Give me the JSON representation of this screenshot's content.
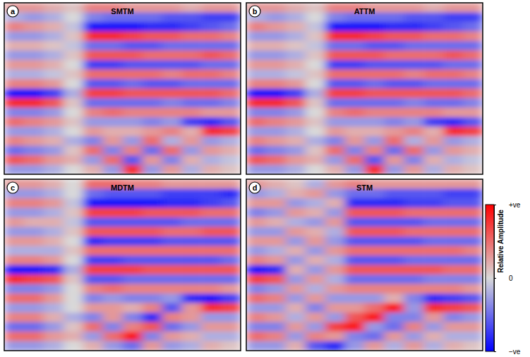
{
  "chart_data": [
    {
      "type": "heatmap",
      "label": "a",
      "title": "SMTM",
      "tick_labels": false,
      "cells": [
        [
          0.3,
          0.3,
          0.2,
          0.1,
          0.4,
          0.4,
          0.3,
          0.3,
          0.3,
          0.2,
          0.3,
          0.3
        ],
        [
          -0.2,
          -0.3,
          -0.2,
          0.0,
          -0.4,
          -0.5,
          -0.5,
          -0.5,
          -0.6,
          -0.6,
          -0.7,
          -0.7
        ],
        [
          0.4,
          0.3,
          0.2,
          -0.1,
          -0.9,
          -0.9,
          -0.9,
          -0.8,
          -0.8,
          -0.7,
          -0.6,
          -0.5
        ],
        [
          -0.3,
          -0.3,
          -0.2,
          0.1,
          0.8,
          0.8,
          0.7,
          0.6,
          0.6,
          0.5,
          0.5,
          0.4
        ],
        [
          0.2,
          0.2,
          0.1,
          -0.1,
          -0.5,
          -0.5,
          -0.6,
          -0.6,
          -0.5,
          -0.5,
          -0.5,
          -0.5
        ],
        [
          -0.3,
          -0.3,
          -0.2,
          0.1,
          0.6,
          0.6,
          0.6,
          0.5,
          0.5,
          0.5,
          0.6,
          0.5
        ],
        [
          0.3,
          0.3,
          0.2,
          0.0,
          -0.7,
          -0.7,
          -0.6,
          -0.6,
          -0.6,
          -0.6,
          -0.5,
          -0.5
        ],
        [
          -0.2,
          -0.2,
          -0.1,
          0.1,
          0.5,
          0.5,
          0.5,
          0.5,
          0.4,
          0.5,
          0.5,
          0.4
        ],
        [
          0.4,
          0.4,
          0.3,
          0.0,
          -0.6,
          -0.6,
          -0.5,
          -0.6,
          -0.6,
          -0.5,
          -0.5,
          -0.5
        ],
        [
          -0.9,
          -0.9,
          -0.7,
          -0.2,
          0.7,
          0.7,
          0.6,
          0.6,
          0.6,
          0.6,
          0.6,
          0.5
        ],
        [
          0.8,
          0.8,
          0.6,
          0.1,
          -0.5,
          -0.5,
          -0.5,
          -0.5,
          -0.4,
          -0.5,
          -0.5,
          -0.4
        ],
        [
          -0.4,
          -0.4,
          -0.3,
          0.0,
          0.4,
          0.5,
          0.4,
          0.4,
          0.4,
          0.4,
          0.3,
          0.3
        ],
        [
          0.5,
          0.4,
          0.3,
          0.1,
          -0.3,
          -0.3,
          -0.3,
          -0.4,
          -0.3,
          -0.7,
          -0.8,
          -0.6
        ],
        [
          -0.3,
          -0.3,
          -0.2,
          0.0,
          0.3,
          0.2,
          0.2,
          0.3,
          0.4,
          0.2,
          0.8,
          0.7
        ],
        [
          0.4,
          0.3,
          0.2,
          -0.2,
          -0.4,
          0.3,
          -0.3,
          0.5,
          -0.2,
          0.3,
          -0.3,
          -0.2
        ],
        [
          -0.5,
          -0.4,
          -0.3,
          0.1,
          0.5,
          -0.4,
          0.4,
          -0.5,
          0.5,
          -0.3,
          0.3,
          0.2
        ],
        [
          0.6,
          0.5,
          0.3,
          0.2,
          -0.3,
          0.5,
          -0.6,
          0.3,
          -0.4,
          0.2,
          -0.2,
          -0.1
        ],
        [
          -0.3,
          -0.3,
          -0.2,
          0.0,
          0.2,
          -0.3,
          0.8,
          -0.3,
          0.3,
          -0.2,
          0.2,
          0.1
        ]
      ]
    },
    {
      "type": "heatmap",
      "label": "b",
      "title": "ATTM",
      "tick_labels": false,
      "cells": [
        [
          0.3,
          0.3,
          0.2,
          0.1,
          0.4,
          0.4,
          0.3,
          0.3,
          0.3,
          0.2,
          0.3,
          0.3
        ],
        [
          -0.2,
          -0.3,
          -0.2,
          0.0,
          -0.4,
          -0.5,
          -0.5,
          -0.5,
          -0.6,
          -0.6,
          -0.7,
          -0.7
        ],
        [
          0.4,
          0.3,
          0.2,
          -0.1,
          -0.9,
          -0.9,
          -0.9,
          -0.8,
          -0.8,
          -0.7,
          -0.6,
          -0.5
        ],
        [
          -0.3,
          -0.3,
          -0.2,
          0.1,
          0.8,
          0.8,
          0.7,
          0.6,
          0.6,
          0.5,
          0.5,
          0.4
        ],
        [
          0.2,
          0.2,
          0.1,
          -0.1,
          -0.5,
          -0.5,
          -0.6,
          -0.6,
          -0.5,
          -0.5,
          -0.5,
          -0.5
        ],
        [
          -0.3,
          -0.3,
          -0.2,
          0.1,
          0.6,
          0.6,
          0.6,
          0.5,
          0.5,
          0.5,
          0.6,
          0.5
        ],
        [
          0.3,
          0.3,
          0.2,
          0.0,
          -0.7,
          -0.7,
          -0.6,
          -0.6,
          -0.6,
          -0.6,
          -0.5,
          -0.5
        ],
        [
          -0.2,
          -0.2,
          -0.1,
          0.1,
          0.5,
          0.5,
          0.5,
          0.5,
          0.4,
          0.5,
          0.5,
          0.4
        ],
        [
          0.4,
          0.4,
          0.3,
          0.0,
          -0.6,
          -0.6,
          -0.5,
          -0.6,
          -0.6,
          -0.5,
          -0.5,
          -0.5
        ],
        [
          -0.9,
          -0.9,
          -0.7,
          -0.2,
          0.7,
          0.7,
          0.6,
          0.6,
          0.6,
          0.6,
          0.6,
          0.5
        ],
        [
          0.8,
          0.8,
          0.6,
          0.1,
          -0.5,
          -0.5,
          -0.5,
          -0.5,
          -0.4,
          -0.5,
          -0.5,
          -0.4
        ],
        [
          -0.4,
          -0.4,
          -0.3,
          0.0,
          0.4,
          0.5,
          0.4,
          0.4,
          0.4,
          0.4,
          0.3,
          0.3
        ],
        [
          0.5,
          0.4,
          0.3,
          0.1,
          -0.3,
          -0.3,
          -0.3,
          -0.4,
          -0.3,
          -0.7,
          -0.8,
          -0.6
        ],
        [
          -0.3,
          -0.3,
          -0.2,
          0.0,
          0.3,
          0.2,
          0.2,
          0.3,
          0.4,
          0.2,
          0.8,
          0.7
        ],
        [
          0.4,
          0.3,
          0.2,
          -0.2,
          -0.4,
          0.3,
          -0.3,
          0.5,
          -0.2,
          0.3,
          -0.3,
          -0.2
        ],
        [
          -0.5,
          -0.4,
          -0.3,
          0.1,
          0.5,
          -0.4,
          0.4,
          -0.5,
          0.5,
          -0.3,
          0.3,
          0.2
        ],
        [
          0.6,
          0.5,
          0.3,
          0.2,
          -0.3,
          0.5,
          -0.6,
          0.3,
          -0.4,
          0.2,
          -0.2,
          -0.1
        ],
        [
          -0.3,
          -0.3,
          -0.2,
          0.0,
          0.2,
          -0.3,
          0.8,
          -0.3,
          0.3,
          -0.2,
          0.2,
          0.1
        ]
      ]
    },
    {
      "type": "heatmap",
      "label": "c",
      "title": "MDTM",
      "tick_labels": false,
      "cells": [
        [
          0.3,
          0.3,
          0.2,
          0.0,
          0.5,
          0.5,
          0.4,
          0.4,
          0.3,
          0.3,
          0.3,
          0.3
        ],
        [
          -0.3,
          -0.3,
          -0.2,
          0.0,
          -0.5,
          -0.6,
          -0.6,
          -0.6,
          -0.7,
          -0.7,
          -0.7,
          -0.8
        ],
        [
          0.4,
          0.4,
          0.3,
          -0.1,
          -0.9,
          -0.9,
          -0.9,
          -0.9,
          -0.8,
          -0.8,
          -0.7,
          -0.6
        ],
        [
          -0.3,
          -0.3,
          -0.2,
          0.1,
          0.7,
          0.7,
          0.7,
          0.6,
          0.6,
          0.6,
          0.5,
          0.5
        ],
        [
          0.3,
          0.2,
          0.2,
          -0.1,
          -0.6,
          -0.6,
          -0.6,
          -0.6,
          -0.6,
          -0.5,
          -0.5,
          -0.5
        ],
        [
          -0.3,
          -0.3,
          -0.2,
          0.1,
          0.6,
          0.6,
          0.6,
          0.6,
          0.5,
          0.5,
          0.6,
          0.6
        ],
        [
          0.3,
          0.3,
          0.2,
          0.0,
          -0.8,
          -0.7,
          -0.7,
          -0.7,
          -0.6,
          -0.6,
          -0.6,
          -0.6
        ],
        [
          -0.2,
          -0.2,
          -0.2,
          0.1,
          0.5,
          0.5,
          0.5,
          0.5,
          0.5,
          0.5,
          0.5,
          0.5
        ],
        [
          0.4,
          0.4,
          0.3,
          0.0,
          -0.7,
          -0.7,
          -0.6,
          -0.6,
          -0.6,
          -0.6,
          -0.6,
          -0.5
        ],
        [
          -0.9,
          -0.9,
          -0.8,
          -0.2,
          0.7,
          0.7,
          0.7,
          0.6,
          0.6,
          0.6,
          0.6,
          0.6
        ],
        [
          0.8,
          0.7,
          0.6,
          0.1,
          -0.6,
          -0.6,
          -0.5,
          -0.5,
          -0.5,
          -0.5,
          -0.5,
          -0.5
        ],
        [
          -0.4,
          -0.4,
          -0.3,
          0.0,
          0.4,
          0.5,
          0.4,
          0.4,
          0.4,
          0.4,
          0.4,
          0.3
        ],
        [
          0.5,
          0.5,
          0.3,
          0.0,
          -0.4,
          -0.3,
          -0.4,
          -0.4,
          -0.3,
          -0.8,
          -0.9,
          -0.7
        ],
        [
          -0.3,
          -0.3,
          -0.2,
          0.0,
          0.3,
          0.3,
          0.2,
          0.4,
          -0.6,
          0.3,
          0.8,
          0.7
        ],
        [
          0.4,
          0.4,
          0.2,
          -0.2,
          -0.4,
          0.3,
          -0.4,
          -0.8,
          0.4,
          0.3,
          -0.3,
          -0.3
        ],
        [
          -0.5,
          -0.5,
          -0.3,
          0.1,
          0.5,
          -0.4,
          0.4,
          0.6,
          -0.5,
          -0.3,
          0.3,
          0.3
        ],
        [
          0.5,
          0.5,
          0.3,
          0.2,
          -0.3,
          0.5,
          0.9,
          -0.4,
          0.3,
          0.2,
          -0.2,
          -0.2
        ],
        [
          -0.3,
          -0.3,
          -0.2,
          0.0,
          0.2,
          -0.3,
          -0.5,
          0.3,
          -0.3,
          -0.2,
          0.2,
          0.1
        ]
      ]
    },
    {
      "type": "heatmap",
      "label": "d",
      "title": "STM",
      "tick_labels": false,
      "cells": [
        [
          0.3,
          0.2,
          0.1,
          -0.2,
          0.3,
          0.4,
          0.3,
          0.3,
          0.3,
          0.3,
          0.3,
          0.3
        ],
        [
          -0.3,
          -0.2,
          0.2,
          0.3,
          -0.3,
          -0.5,
          -0.5,
          -0.6,
          -0.6,
          -0.6,
          -0.7,
          -0.7
        ],
        [
          0.3,
          0.3,
          -0.3,
          -0.2,
          0.2,
          -0.8,
          -0.8,
          -0.8,
          -0.7,
          -0.7,
          -0.6,
          -0.6
        ],
        [
          -0.4,
          -0.3,
          0.3,
          0.2,
          -0.3,
          0.6,
          0.6,
          0.6,
          0.5,
          0.5,
          0.5,
          0.5
        ],
        [
          0.3,
          0.2,
          -0.2,
          -0.3,
          0.3,
          -0.6,
          -0.6,
          -0.6,
          -0.6,
          -0.5,
          -0.5,
          -0.5
        ],
        [
          -0.3,
          -0.3,
          0.3,
          0.2,
          -0.2,
          0.6,
          0.6,
          0.6,
          0.5,
          0.5,
          0.5,
          0.5
        ],
        [
          0.3,
          0.3,
          -0.3,
          0.3,
          -0.3,
          -0.6,
          -0.6,
          -0.6,
          -0.6,
          -0.5,
          -0.5,
          -0.5
        ],
        [
          -0.3,
          -0.2,
          0.2,
          -0.3,
          0.3,
          0.5,
          0.5,
          0.5,
          0.5,
          0.5,
          0.5,
          0.4
        ],
        [
          0.4,
          0.3,
          -0.3,
          0.2,
          -0.2,
          -0.6,
          -0.6,
          -0.6,
          -0.5,
          -0.5,
          -0.5,
          -0.5
        ],
        [
          -0.9,
          -0.8,
          0.2,
          -0.3,
          0.3,
          0.6,
          0.6,
          0.6,
          0.6,
          0.6,
          0.5,
          0.5
        ],
        [
          0.7,
          0.6,
          -0.3,
          0.3,
          -0.2,
          -0.5,
          -0.5,
          -0.5,
          -0.5,
          -0.4,
          -0.4,
          -0.4
        ],
        [
          -0.4,
          -0.3,
          0.3,
          -0.2,
          0.3,
          0.4,
          0.4,
          0.4,
          0.4,
          0.4,
          0.4,
          0.3
        ],
        [
          0.5,
          0.4,
          -0.3,
          0.3,
          -0.3,
          -0.3,
          -0.3,
          0.2,
          -0.4,
          -0.8,
          -0.7,
          -0.6
        ],
        [
          -0.3,
          -0.3,
          0.2,
          -0.4,
          0.3,
          0.3,
          0.5,
          0.9,
          -0.3,
          0.8,
          0.7,
          0.6
        ],
        [
          0.4,
          0.3,
          -0.2,
          0.3,
          -0.3,
          0.6,
          0.9,
          -0.4,
          -0.4,
          0.3,
          -0.4,
          -0.3
        ],
        [
          -0.4,
          -0.4,
          0.3,
          -0.3,
          0.7,
          0.9,
          -0.3,
          -0.5,
          0.4,
          -0.3,
          0.3,
          0.3
        ],
        [
          0.5,
          0.4,
          -0.3,
          0.4,
          0.3,
          -0.4,
          -0.5,
          0.3,
          -0.3,
          0.2,
          -0.2,
          -0.2
        ],
        [
          -0.3,
          -0.3,
          0.2,
          -0.6,
          -0.8,
          -0.3,
          0.3,
          -0.2,
          0.3,
          -0.2,
          0.2,
          0.1
        ]
      ],
      "colorbar": {
        "title": "Relative Amplitude",
        "range": [
          -1,
          1
        ],
        "ticks": [
          {
            "value": 1,
            "label": "+ve"
          },
          0,
          {
            "value": -1,
            "label": "−ve"
          }
        ],
        "colors": [
          "#0000ff",
          "#d9d9d9",
          "#ff0000"
        ]
      }
    }
  ]
}
